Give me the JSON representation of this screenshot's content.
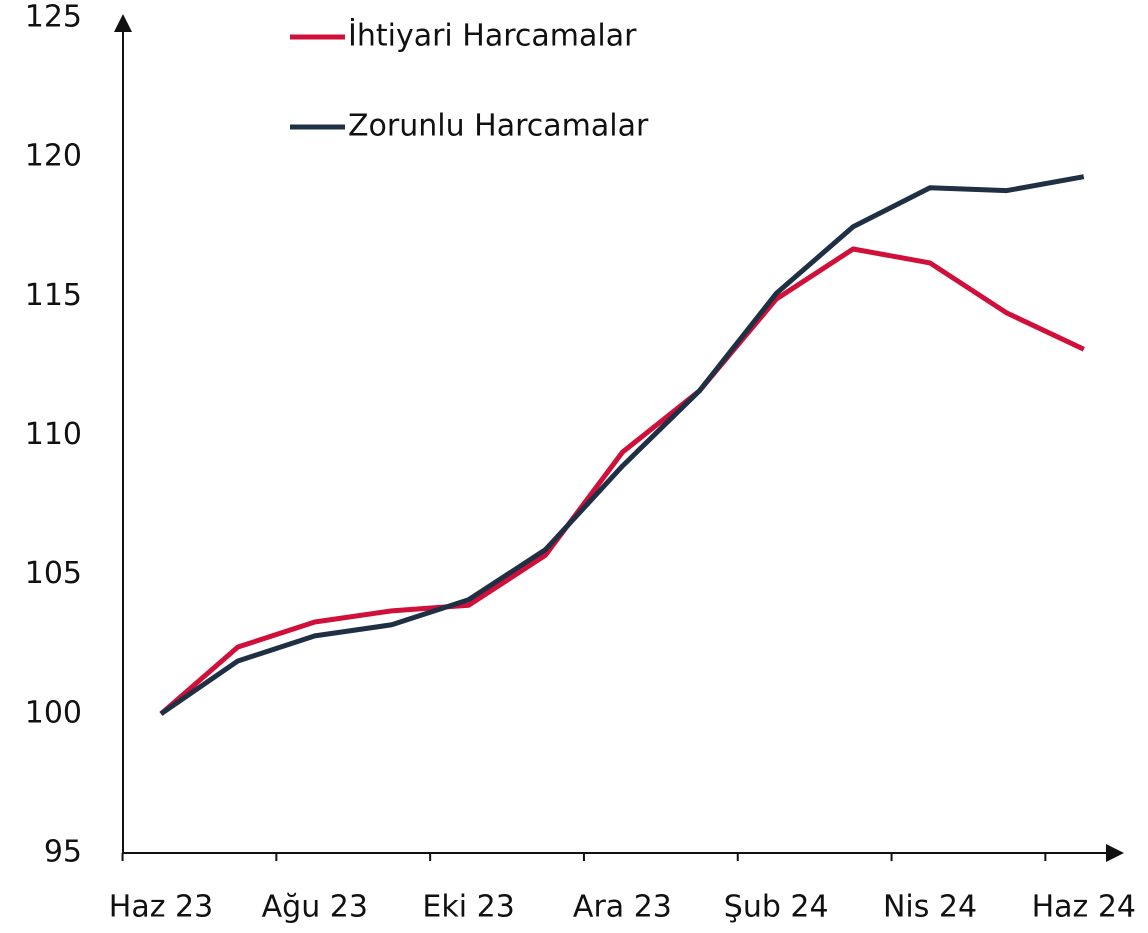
{
  "chart_data": {
    "type": "line",
    "categories": [
      "Haz 23",
      null,
      "Ağu 23",
      null,
      "Eki 23",
      null,
      "Ara 23",
      null,
      "Şub 24",
      null,
      "Nis 24",
      null,
      "Haz 24"
    ],
    "series": [
      {
        "name": "İhtiyari Harcamalar",
        "color": "#d0103a",
        "values": [
          100,
          102.4,
          103.3,
          103.7,
          103.9,
          105.7,
          109.4,
          111.6,
          114.9,
          116.7,
          116.2,
          114.4,
          113.1
        ]
      },
      {
        "name": "Zorunlu Harcamalar",
        "color": "#1f3044",
        "values": [
          100,
          101.9,
          102.8,
          103.2,
          104.1,
          105.9,
          108.9,
          111.6,
          115.1,
          117.5,
          118.9,
          118.8,
          119.3
        ]
      }
    ],
    "ylim": [
      95,
      125
    ],
    "yticks": [
      95,
      100,
      105,
      110,
      115,
      120,
      125
    ]
  }
}
